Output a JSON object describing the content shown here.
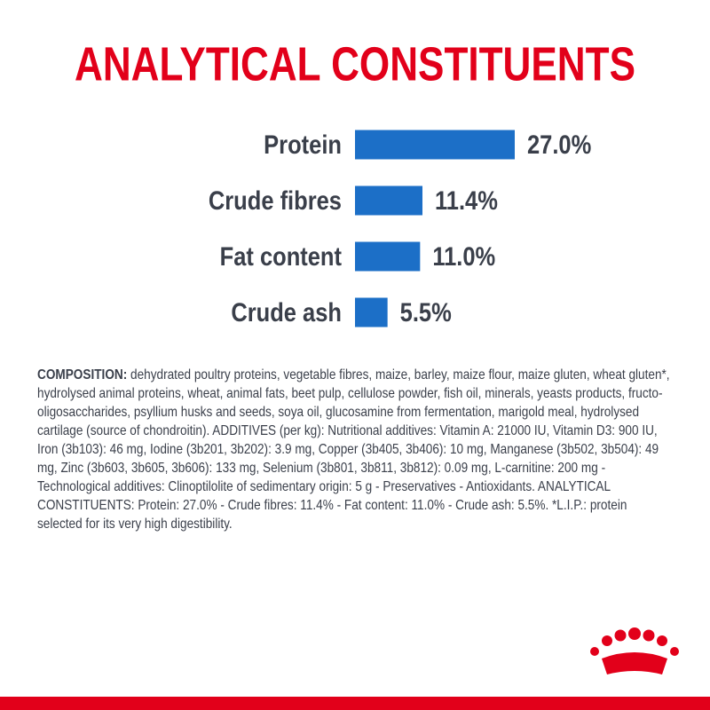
{
  "chart_data": {
    "type": "hbar",
    "title": "ANALYTICAL CONSTITUENTS",
    "categories": [
      "Protein",
      "Crude fibres",
      "Fat content",
      "Crude ash"
    ],
    "values": [
      27.0,
      11.4,
      11.0,
      5.5
    ],
    "value_labels": [
      "27.0%",
      "11.4%",
      "11.0%",
      "5.5%"
    ],
    "color": "#1c6fc7"
  },
  "composition": {
    "label": "COMPOSITION:",
    "text": "dehydrated poultry proteins, vegetable fibres, maize, barley, maize flour, maize gluten, wheat gluten*, hydrolysed animal proteins, wheat, animal fats, beet pulp, cellulose powder, fish oil, minerals, yeasts products, fructo-oligosaccharides, psyllium husks and seeds, soya oil, glucosamine from fermentation, marigold meal, hydrolysed cartilage (source of chondroitin). ADDITIVES (per kg): Nutritional additives: Vitamin A: 21000 IU, Vitamin D3: 900 IU, Iron (3b103): 46 mg, Iodine (3b201, 3b202): 3.9 mg, Copper (3b405, 3b406): 10 mg, Manganese (3b502, 3b504): 49 mg, Zinc (3b603, 3b605, 3b606): 133 mg, Selenium (3b801, 3b811, 3b812): 0.09 mg, L-carnitine: 200 mg - Technological additives: Clinoptilolite of sedimentary origin: 5 g - Preservatives - Antioxidants. ANALYTICAL CONSTITUENTS: Protein: 27.0% - Crude fibres: 11.4% - Fat content: 11.0% - Crude ash: 5.5%. *L.I.P.: protein selected for its very high digestibility."
  }
}
